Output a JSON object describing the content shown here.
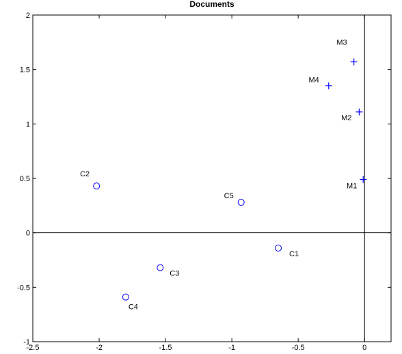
{
  "chart_data": {
    "type": "scatter",
    "title": "Documents",
    "xlabel": "",
    "ylabel": "",
    "xlim": [
      -2.5,
      0.2
    ],
    "ylim": [
      -1,
      2
    ],
    "xticks": [
      -2.5,
      -2,
      -1.5,
      -1,
      -0.5,
      0
    ],
    "xtick_labels": [
      "-2.5",
      "-2",
      "-1.5",
      "-1",
      "-0.5",
      "0"
    ],
    "yticks": [
      -1,
      -0.5,
      0,
      0.5,
      1,
      1.5,
      2
    ],
    "ytick_labels": [
      "-1",
      "-0.5",
      "0",
      "0.5",
      "1",
      "1.5",
      "2"
    ],
    "grid": false,
    "reference_lines": {
      "x": 0,
      "y": 0
    },
    "marker_color": "#0000ff",
    "series": [
      {
        "marker": "circle",
        "points": [
          {
            "label": "C1",
            "x": -0.65,
            "y": -0.14
          },
          {
            "label": "C2",
            "x": -2.02,
            "y": 0.43
          },
          {
            "label": "C3",
            "x": -1.54,
            "y": -0.32
          },
          {
            "label": "C4",
            "x": -1.8,
            "y": -0.59
          },
          {
            "label": "C5",
            "x": -0.93,
            "y": 0.28
          }
        ]
      },
      {
        "marker": "plus",
        "points": [
          {
            "label": "M1",
            "x": -0.01,
            "y": 0.49
          },
          {
            "label": "M2",
            "x": -0.04,
            "y": 1.11
          },
          {
            "label": "M3",
            "x": -0.08,
            "y": 1.57
          },
          {
            "label": "M4",
            "x": -0.27,
            "y": 1.35
          }
        ]
      }
    ]
  }
}
